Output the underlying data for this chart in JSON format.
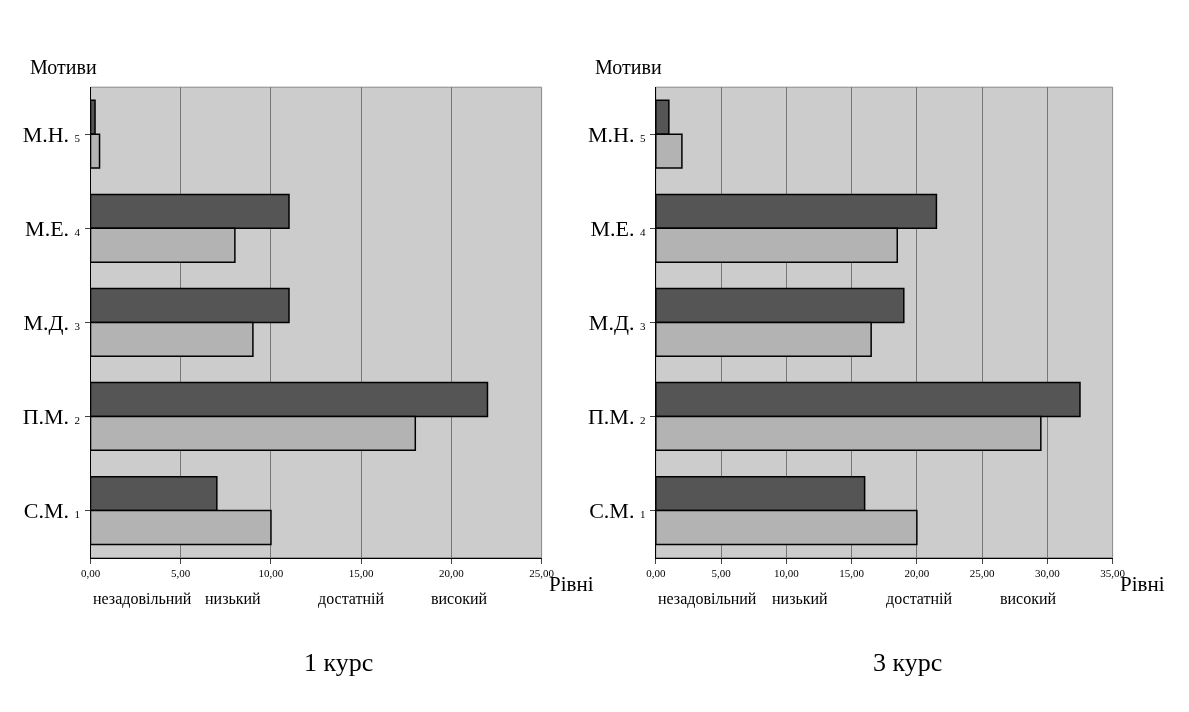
{
  "chart_data": [
    {
      "type": "bar",
      "orientation": "horizontal",
      "title": "1 курс",
      "xlabel": "Рівні",
      "ylabel": "Мотиви",
      "categories": [
        "М.Н. 5",
        "М.Е. 4",
        "М.Д. 3",
        "П.М. 2",
        "С.М. 1"
      ],
      "series": [
        {
          "color": "#555555",
          "values": [
            0.25,
            11.0,
            11.0,
            22.0,
            7.0
          ]
        },
        {
          "color": "#b3b3b3",
          "values": [
            0.5,
            8.0,
            9.0,
            18.0,
            10.0
          ]
        }
      ],
      "xlim": [
        0,
        25
      ],
      "xticks": [
        {
          "value": 0,
          "label": "0,00"
        },
        {
          "value": 5,
          "label": "5,00"
        },
        {
          "value": 10,
          "label": "10,00"
        },
        {
          "value": 15,
          "label": "15,00"
        },
        {
          "value": 20,
          "label": "20,00"
        },
        {
          "value": 25,
          "label": "25,00"
        }
      ],
      "annotations": [
        "незадовільний",
        "низький",
        "достатній",
        "високий"
      ],
      "grid": "x"
    },
    {
      "type": "bar",
      "orientation": "horizontal",
      "title": "3 курс",
      "xlabel": "Рівні",
      "ylabel": "Мотиви",
      "categories": [
        "М.Н. 5",
        "М.Е. 4",
        "М.Д. 3",
        "П.М. 2",
        "С.М. 1"
      ],
      "series": [
        {
          "color": "#555555",
          "values": [
            1.0,
            21.5,
            19.0,
            32.5,
            16.0
          ]
        },
        {
          "color": "#b3b3b3",
          "values": [
            2.0,
            18.5,
            16.5,
            29.5,
            20.0
          ]
        }
      ],
      "xlim": [
        0,
        35
      ],
      "xticks": [
        {
          "value": 0,
          "label": "0,00"
        },
        {
          "value": 5,
          "label": "5,00"
        },
        {
          "value": 10,
          "label": "10,00"
        },
        {
          "value": 15,
          "label": "15,00"
        },
        {
          "value": 20,
          "label": "20,00"
        },
        {
          "value": 25,
          "label": "25,00"
        },
        {
          "value": 30,
          "label": "30,00"
        },
        {
          "value": 35,
          "label": "35,00"
        }
      ],
      "annotations": [
        "незадовільний",
        "низький",
        "достатній",
        "високий"
      ],
      "grid": "x"
    }
  ]
}
